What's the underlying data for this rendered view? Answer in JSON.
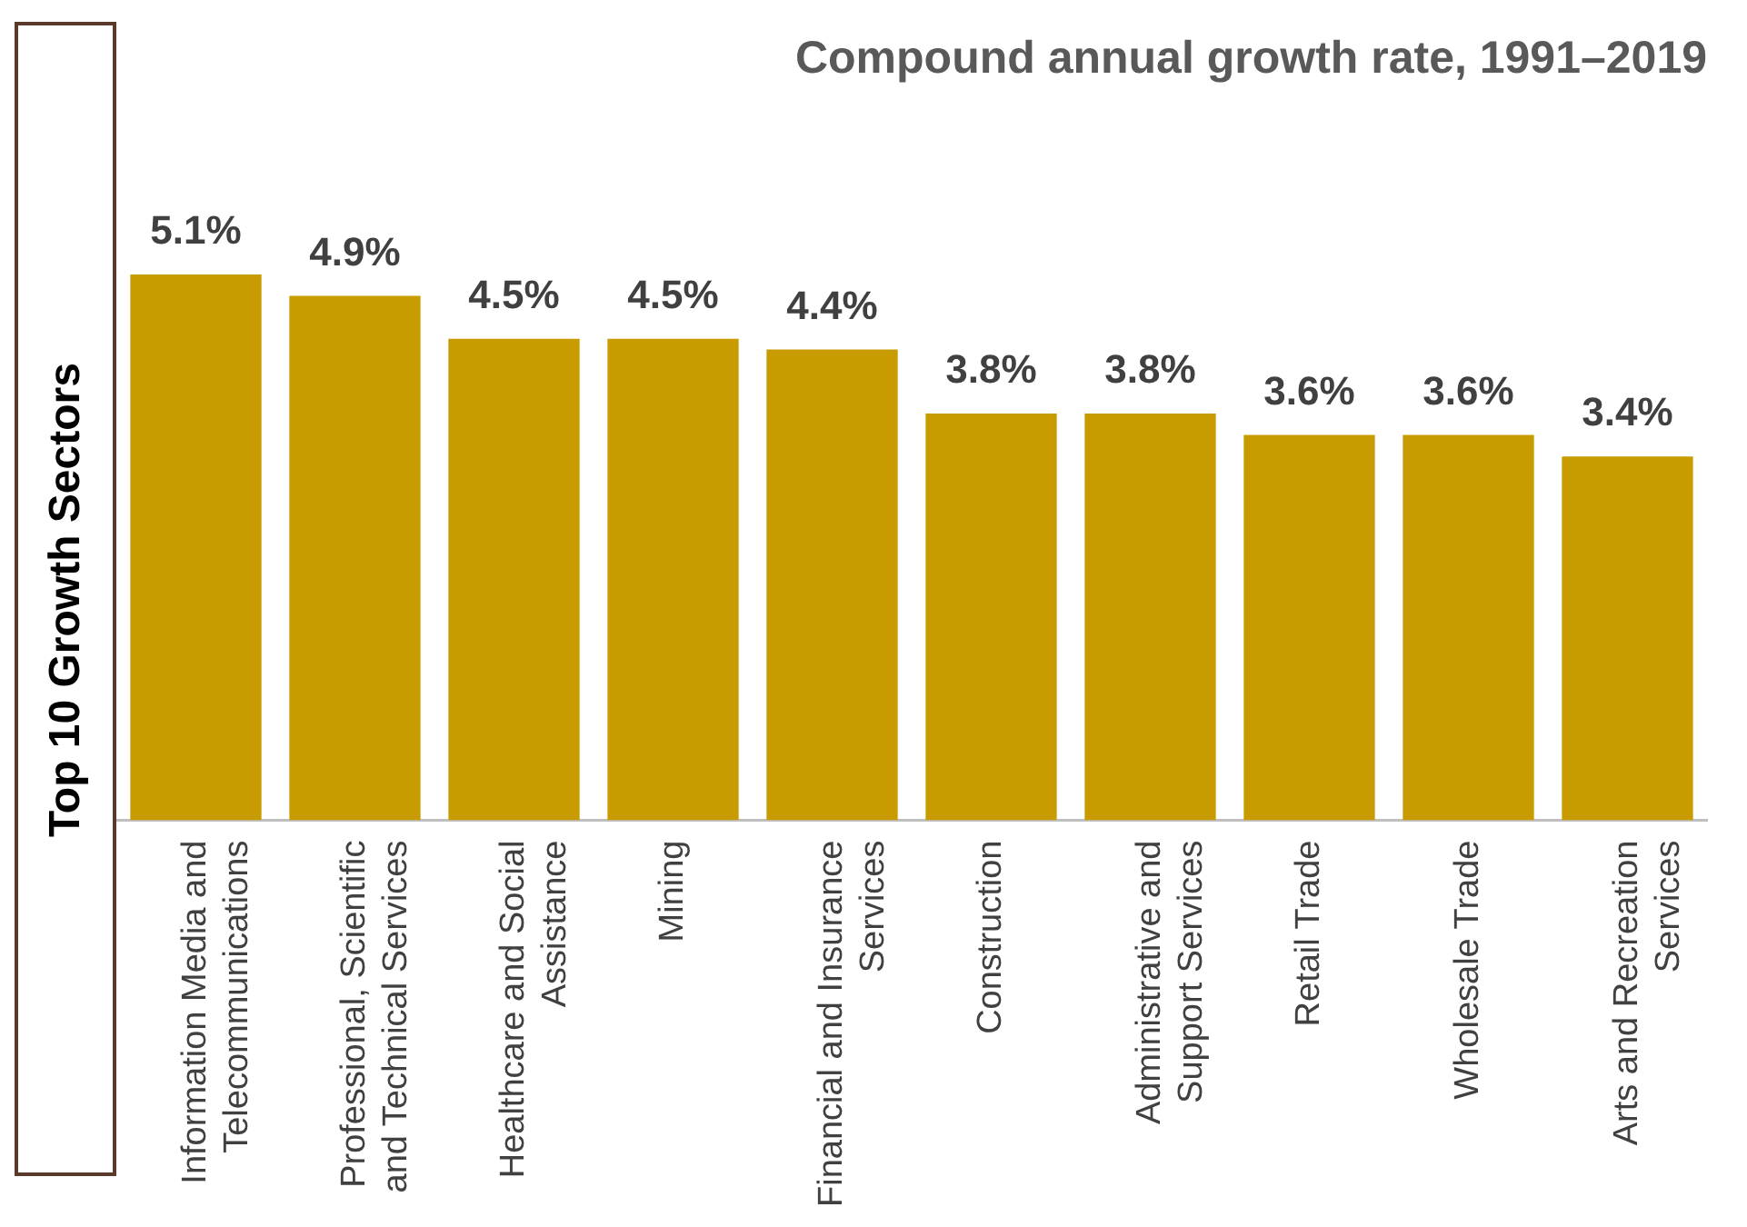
{
  "chart_data": {
    "type": "bar",
    "title": "Compound annual growth rate, 1991–2019",
    "ylabel": "Top 10 Growth Sectors",
    "categories": [
      "Information Media and Telecommunications",
      "Professional, Scientific and Technical Services",
      "Healthcare and Social Assistance",
      "Mining",
      "Financial and Insurance Services",
      "Construction",
      "Administrative and Support Services",
      "Retail Trade",
      "Wholesale Trade",
      "Arts and Recreation Services"
    ],
    "values": [
      5.1,
      4.9,
      4.5,
      4.5,
      4.4,
      3.8,
      3.8,
      3.6,
      3.6,
      3.4
    ],
    "value_labels": [
      "5.1%",
      "4.9%",
      "4.5%",
      "4.5%",
      "4.4%",
      "3.8%",
      "3.8%",
      "3.6%",
      "3.6%",
      "3.4%"
    ],
    "color": "#c89b00"
  }
}
